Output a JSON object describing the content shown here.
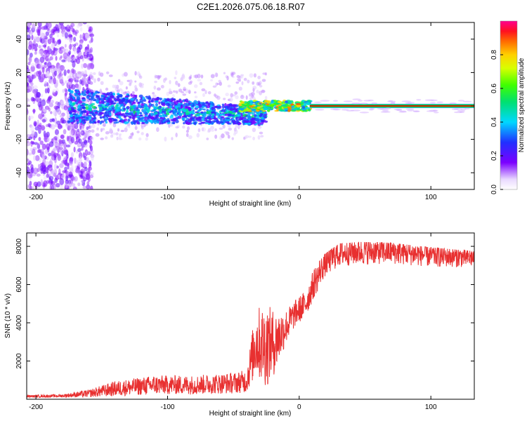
{
  "title": "C2E1.2026.075.06.18.R07",
  "colors": {
    "signal_line": "#e52222",
    "snr_line": "#e83030",
    "frame": "#000000"
  },
  "chart_data": [
    {
      "type": "heatmap",
      "name": "spectrogram",
      "xlabel": "Height of straight line (km)",
      "ylabel": "Frequency (Hz)",
      "xlim": [
        -207,
        133
      ],
      "ylim": [
        -50,
        50
      ],
      "x_ticks": [
        -200,
        -100,
        0,
        100
      ],
      "x_tick_labels": [
        "-200",
        "-100",
        "0",
        "100"
      ],
      "y_ticks": [
        -40,
        -20,
        0,
        20,
        40
      ],
      "y_tick_labels": [
        "-40",
        "-20",
        "0",
        "20",
        "40"
      ],
      "carrier_frequency_hz": 0,
      "signal_regions": [
        {
          "x_range": [
            -207,
            -160
          ],
          "description": "noise",
          "freq_spread_hz": 50,
          "amplitude": 0.2
        },
        {
          "x_range": [
            -175,
            -30
          ],
          "description": "scattered signal",
          "freq_spread_hz": 8,
          "amplitude": 0.35
        },
        {
          "x_range": [
            -45,
            8
          ],
          "description": "emerging carrier",
          "freq_spread_hz": 3,
          "amplitude": 0.75
        },
        {
          "x_range": [
            8,
            133
          ],
          "description": "clear carrier",
          "freq_spread_hz": 1,
          "amplitude": 1.0
        }
      ],
      "colorbar": {
        "label": "Normalized spectral amplitude",
        "range": [
          0,
          1
        ],
        "ticks": [
          0.0,
          0.2,
          0.4,
          0.6,
          0.8
        ],
        "tick_labels": [
          "0.0",
          "0.2",
          "0.4",
          "0.6",
          "0.8"
        ]
      }
    },
    {
      "type": "line",
      "name": "snr",
      "xlabel": "Height of straight line (km)",
      "ylabel": "SNR (10 * v/v)",
      "xlim": [
        -207,
        133
      ],
      "ylim": [
        0,
        8700
      ],
      "x_ticks": [
        -200,
        -100,
        0,
        100
      ],
      "x_tick_labels": [
        "-200",
        "-100",
        "0",
        "100"
      ],
      "y_ticks": [
        2000,
        4000,
        6000,
        8000
      ],
      "y_tick_labels": [
        "2000",
        "4000",
        "6000",
        "8000"
      ],
      "envelope_x": [
        -207,
        -180,
        -160,
        -140,
        -110,
        -80,
        -50,
        -40,
        -33,
        -25,
        -18,
        -10,
        -3,
        5,
        12,
        20,
        30,
        45,
        70,
        100,
        133
      ],
      "envelope_mean": [
        150,
        180,
        300,
        550,
        750,
        750,
        850,
        950,
        3000,
        2800,
        3000,
        3800,
        4500,
        5000,
        6200,
        7000,
        7500,
        7600,
        7600,
        7400,
        7300
      ],
      "envelope_noise": [
        60,
        80,
        200,
        400,
        500,
        500,
        550,
        600,
        1800,
        2200,
        1600,
        900,
        700,
        700,
        800,
        700,
        700,
        700,
        650,
        600,
        500
      ]
    }
  ]
}
